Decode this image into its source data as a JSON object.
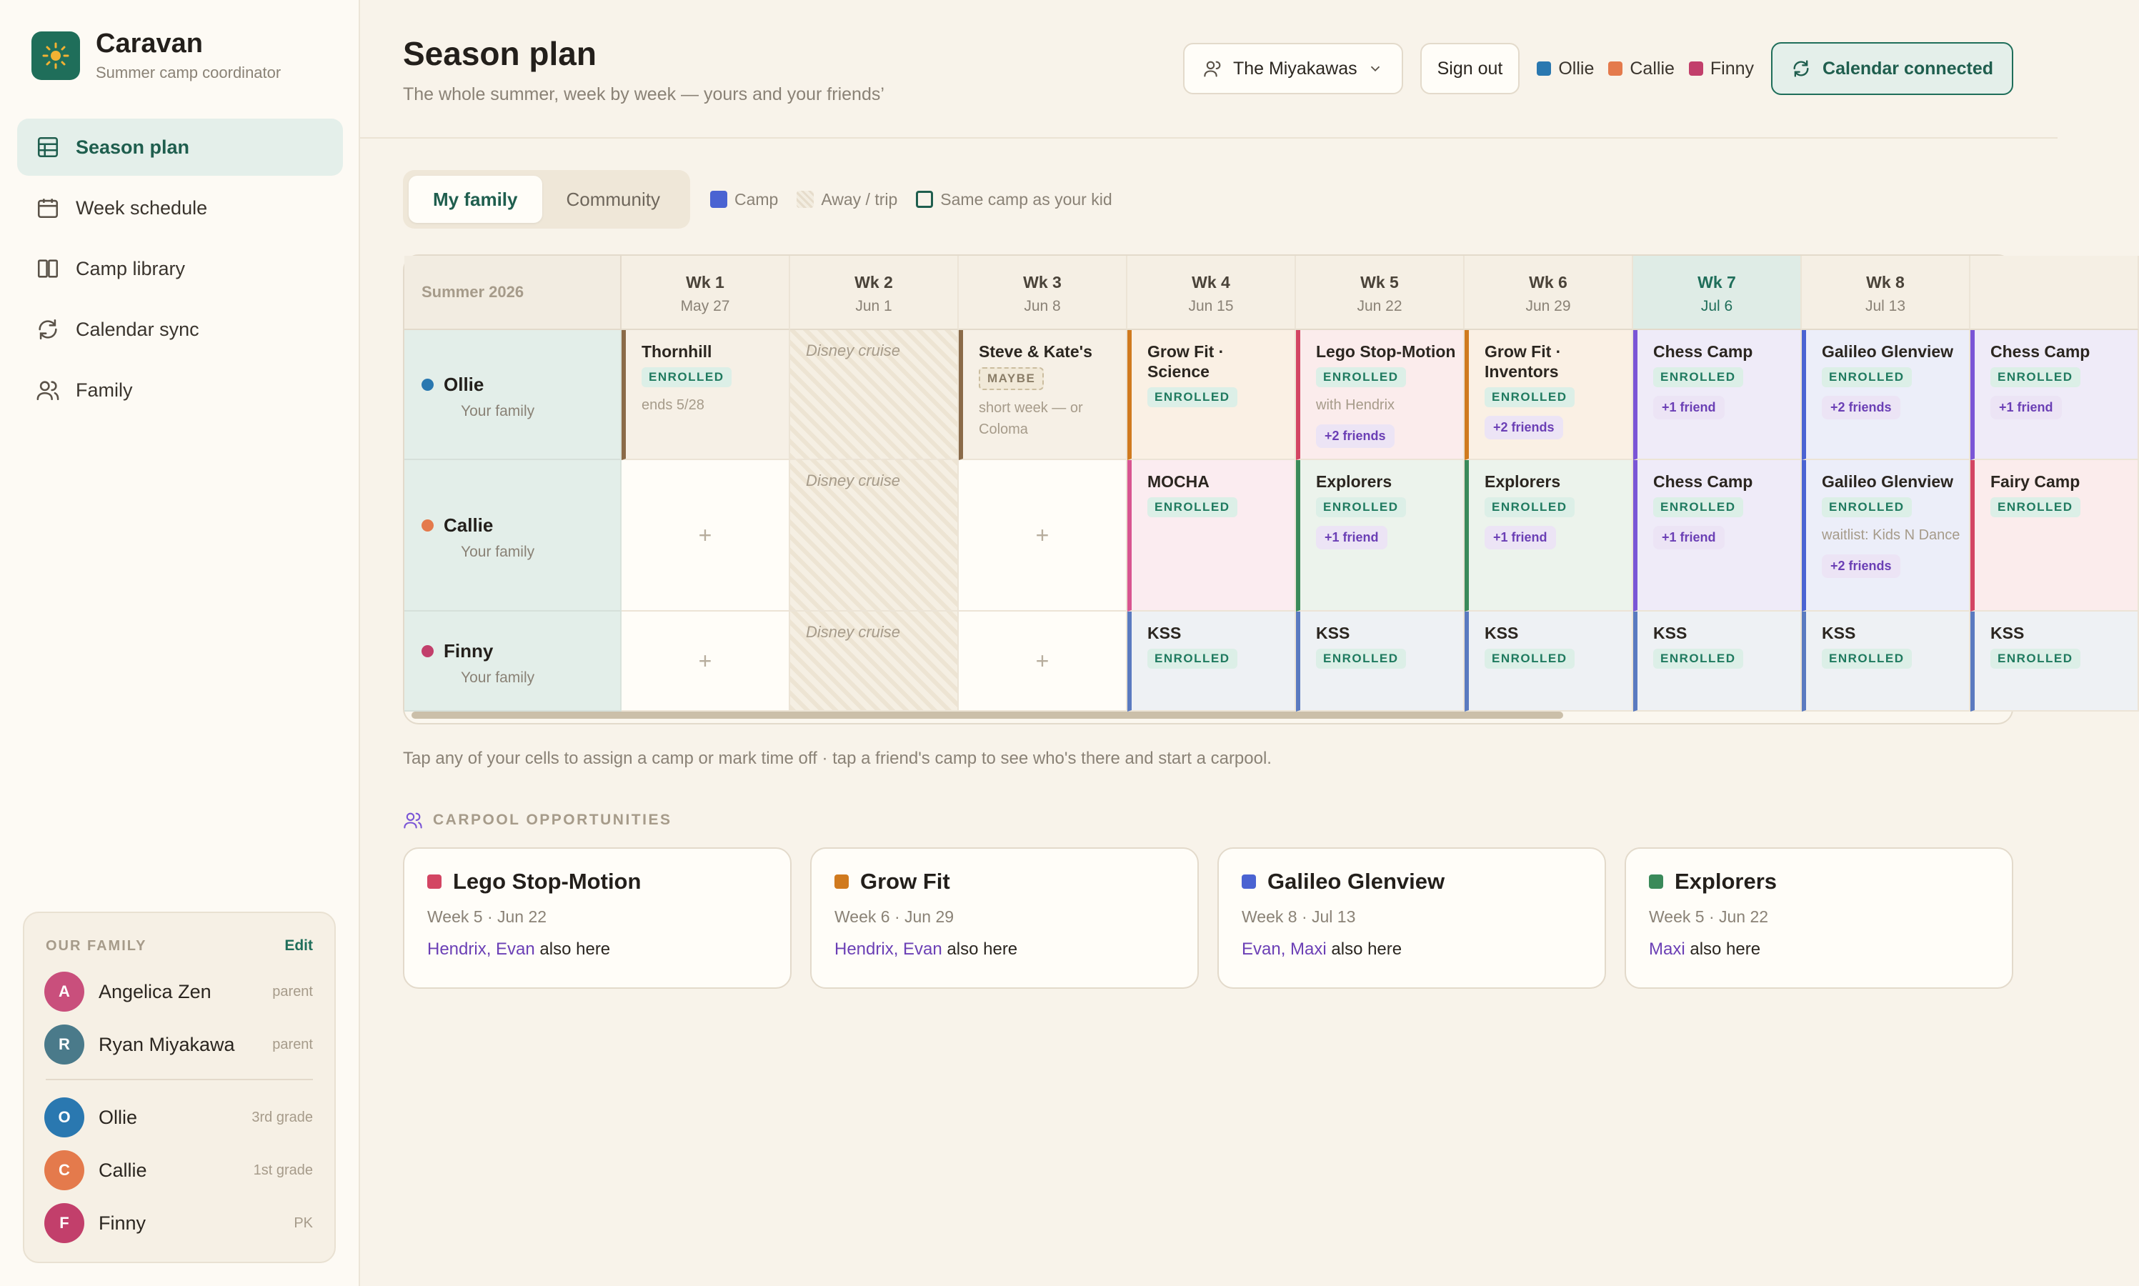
{
  "app": {
    "name": "Caravan",
    "subtitle": "Summer camp coordinator",
    "logo_icon": "sun-icon"
  },
  "nav": [
    {
      "label": "Season plan",
      "icon": "grid-icon",
      "active": true
    },
    {
      "label": "Week schedule",
      "icon": "calendar-icon"
    },
    {
      "label": "Camp library",
      "icon": "book-icon"
    },
    {
      "label": "Calendar sync",
      "icon": "sync-icon"
    },
    {
      "label": "Family",
      "icon": "people-icon"
    }
  ],
  "family_card": {
    "title": "OUR FAMILY",
    "edit_label": "Edit",
    "members": [
      {
        "initial": "A",
        "name": "Angelica Zen",
        "role": "parent",
        "color": "#c94f7c"
      },
      {
        "initial": "R",
        "name": "Ryan Miyakawa",
        "role": "parent",
        "color": "#4a7a8a"
      },
      {
        "initial": "O",
        "name": "Ollie",
        "role": "3rd grade",
        "color": "#2a78b0"
      },
      {
        "initial": "C",
        "name": "Callie",
        "role": "1st grade",
        "color": "#e47a4c"
      },
      {
        "initial": "F",
        "name": "Finny",
        "role": "PK",
        "color": "#c23f6b"
      }
    ]
  },
  "header": {
    "title": "Season plan",
    "subtitle": "The whole summer, week by week — yours and your friends’",
    "family_select": "The Miyakawas",
    "signout": "Sign out",
    "kids": [
      {
        "name": "Ollie",
        "color": "#2a78b0"
      },
      {
        "name": "Callie",
        "color": "#e47a4c"
      },
      {
        "name": "Finny",
        "color": "#c23f6b"
      }
    ],
    "calendar_button": "Calendar connected"
  },
  "toolbar": {
    "tabs": [
      {
        "label": "My family",
        "active": true
      },
      {
        "label": "Community"
      }
    ],
    "legend": {
      "camp": "Camp",
      "away": "Away / trip",
      "same": "Same camp as your kid"
    }
  },
  "grid": {
    "season_label": "Summer 2026",
    "weeks": [
      {
        "label": "Wk 1",
        "date": "May 27"
      },
      {
        "label": "Wk 2",
        "date": "Jun 1"
      },
      {
        "label": "Wk 3",
        "date": "Jun 8"
      },
      {
        "label": "Wk 4",
        "date": "Jun 15"
      },
      {
        "label": "Wk 5",
        "date": "Jun 22"
      },
      {
        "label": "Wk 6",
        "date": "Jun 29"
      },
      {
        "label": "Wk 7",
        "date": "Jul 6",
        "current": true
      },
      {
        "label": "Wk 8",
        "date": "Jul 13"
      },
      {
        "label": "",
        "date": ""
      }
    ],
    "rows": [
      {
        "kid": "Ollie",
        "sub": "Your family",
        "color": "#2a78b0",
        "cells": [
          {
            "type": "camp",
            "title": "Thornhill",
            "badge": "ENROLLED",
            "note": "ends 5/28",
            "color": "#8a6a48",
            "bg": "#f6f0e6"
          },
          {
            "type": "away",
            "title": "Disney cruise"
          },
          {
            "type": "camp",
            "title": "Steve & Kate's",
            "badge": "MAYBE",
            "note": "short week — or Coloma",
            "color": "#8a6a48",
            "bg": "#f6f0e6"
          },
          {
            "type": "camp",
            "title": "Grow Fit · Science",
            "badge": "ENROLLED",
            "color": "#d07a1f",
            "bg": "#faf0e4"
          },
          {
            "type": "camp",
            "title": "Lego Stop-Motion",
            "badge": "ENROLLED",
            "note": "with Hendrix",
            "friends": "+2 friends",
            "color": "#d34563",
            "bg": "#fbecec"
          },
          {
            "type": "camp",
            "title": "Grow Fit · Inventors",
            "badge": "ENROLLED",
            "friends": "+2 friends",
            "color": "#d07a1f",
            "bg": "#faf0e4"
          },
          {
            "type": "camp",
            "title": "Chess Camp",
            "badge": "ENROLLED",
            "friends": "+1 friend",
            "color": "#7a55d6",
            "bg": "#efebf8"
          },
          {
            "type": "camp",
            "title": "Galileo Glenview",
            "badge": "ENROLLED",
            "friends": "+2 friends",
            "color": "#4a63d2",
            "bg": "#eceef9"
          },
          {
            "type": "camp",
            "title": "Chess Camp",
            "badge": "ENROLLED",
            "friends": "+1 friend",
            "color": "#7a55d6",
            "bg": "#efebf8"
          }
        ]
      },
      {
        "kid": "Callie",
        "sub": "Your family",
        "color": "#e47a4c",
        "cells": [
          {
            "type": "empty"
          },
          {
            "type": "away",
            "title": "Disney cruise"
          },
          {
            "type": "empty"
          },
          {
            "type": "camp",
            "title": "MOCHA",
            "badge": "ENROLLED",
            "color": "#d85590",
            "bg": "#fbecf0"
          },
          {
            "type": "camp",
            "title": "Explorers",
            "badge": "ENROLLED",
            "friends": "+1 friend",
            "color": "#3a8a5a",
            "bg": "#ecf3ec"
          },
          {
            "type": "camp",
            "title": "Explorers",
            "badge": "ENROLLED",
            "friends": "+1 friend",
            "color": "#3a8a5a",
            "bg": "#ecf3ec"
          },
          {
            "type": "camp",
            "title": "Chess Camp",
            "badge": "ENROLLED",
            "friends": "+1 friend",
            "color": "#7a55d6",
            "bg": "#efebf8"
          },
          {
            "type": "camp",
            "title": "Galileo Glenview",
            "badge": "ENROLLED",
            "note": "waitlist: Kids N Dance",
            "friends": "+2 friends",
            "color": "#4a63d2",
            "bg": "#eceef9"
          },
          {
            "type": "camp",
            "title": "Fairy Camp",
            "badge": "ENROLLED",
            "color": "#d34563",
            "bg": "#fbecec"
          }
        ]
      },
      {
        "kid": "Finny",
        "sub": "Your family",
        "color": "#c23f6b",
        "cells": [
          {
            "type": "empty"
          },
          {
            "type": "away",
            "title": "Disney cruise"
          },
          {
            "type": "empty"
          },
          {
            "type": "camp",
            "title": "KSS",
            "badge": "ENROLLED",
            "color": "#5a7ac0",
            "bg": "#eef1f4"
          },
          {
            "type": "camp",
            "title": "KSS",
            "badge": "ENROLLED",
            "color": "#5a7ac0",
            "bg": "#eef1f4"
          },
          {
            "type": "camp",
            "title": "KSS",
            "badge": "ENROLLED",
            "color": "#5a7ac0",
            "bg": "#eef1f4"
          },
          {
            "type": "camp",
            "title": "KSS",
            "badge": "ENROLLED",
            "color": "#5a7ac0",
            "bg": "#eef1f4"
          },
          {
            "type": "camp",
            "title": "KSS",
            "badge": "ENROLLED",
            "color": "#5a7ac0",
            "bg": "#eef1f4"
          },
          {
            "type": "camp",
            "title": "KSS",
            "badge": "ENROLLED",
            "color": "#5a7ac0",
            "bg": "#eef1f4"
          }
        ]
      }
    ]
  },
  "hint": "Tap any of your cells to assign a camp or mark time off · tap a friend's camp to see who's there and start a carpool.",
  "carpool": {
    "title": "CARPOOL OPPORTUNITIES",
    "cards": [
      {
        "camp": "Lego Stop-Motion",
        "when": "Week 5 · Jun 22",
        "friends": "Hendrix, Evan",
        "suffix": "also here",
        "color": "#d34563"
      },
      {
        "camp": "Grow Fit",
        "when": "Week 6 · Jun 29",
        "friends": "Hendrix, Evan",
        "suffix": "also here",
        "color": "#d07a1f"
      },
      {
        "camp": "Galileo Glenview",
        "when": "Week 8 · Jul 13",
        "friends": "Evan, Maxi",
        "suffix": "also here",
        "color": "#4a63d2"
      },
      {
        "camp": "Explorers",
        "when": "Week 5 · Jun 22",
        "friends": "Maxi",
        "suffix": "also here",
        "color": "#3a8a5a"
      }
    ]
  }
}
